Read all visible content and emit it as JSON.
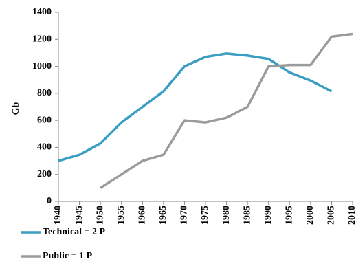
{
  "chart_data": {
    "type": "line",
    "y_label": "Gb",
    "x": [
      1940,
      1945,
      1950,
      1955,
      1960,
      1965,
      1970,
      1975,
      1980,
      1985,
      1990,
      1995,
      2000,
      2005,
      2010
    ],
    "xlim": [
      1940,
      2010
    ],
    "xticks": [
      1940,
      1945,
      1950,
      1955,
      1960,
      1965,
      1970,
      1975,
      1980,
      1985,
      1990,
      1995,
      2000,
      2005,
      2010
    ],
    "ylim": [
      0,
      1400
    ],
    "yticks": [
      0,
      200,
      400,
      600,
      800,
      1000,
      1200,
      1400
    ],
    "grid": false,
    "legend": "bottom",
    "series": [
      {
        "name": "Technical = 2 P",
        "color": "#3a9dc2",
        "values": [
          300,
          345,
          430,
          585,
          700,
          815,
          1000,
          1070,
          1095,
          1080,
          1055,
          955,
          895,
          815,
          null
        ]
      },
      {
        "name": "Public = 1 P",
        "color": "#9b9b9b",
        "values": [
          null,
          null,
          100,
          200,
          300,
          345,
          600,
          585,
          620,
          700,
          1000,
          1010,
          1010,
          1220,
          1240
        ]
      }
    ]
  }
}
